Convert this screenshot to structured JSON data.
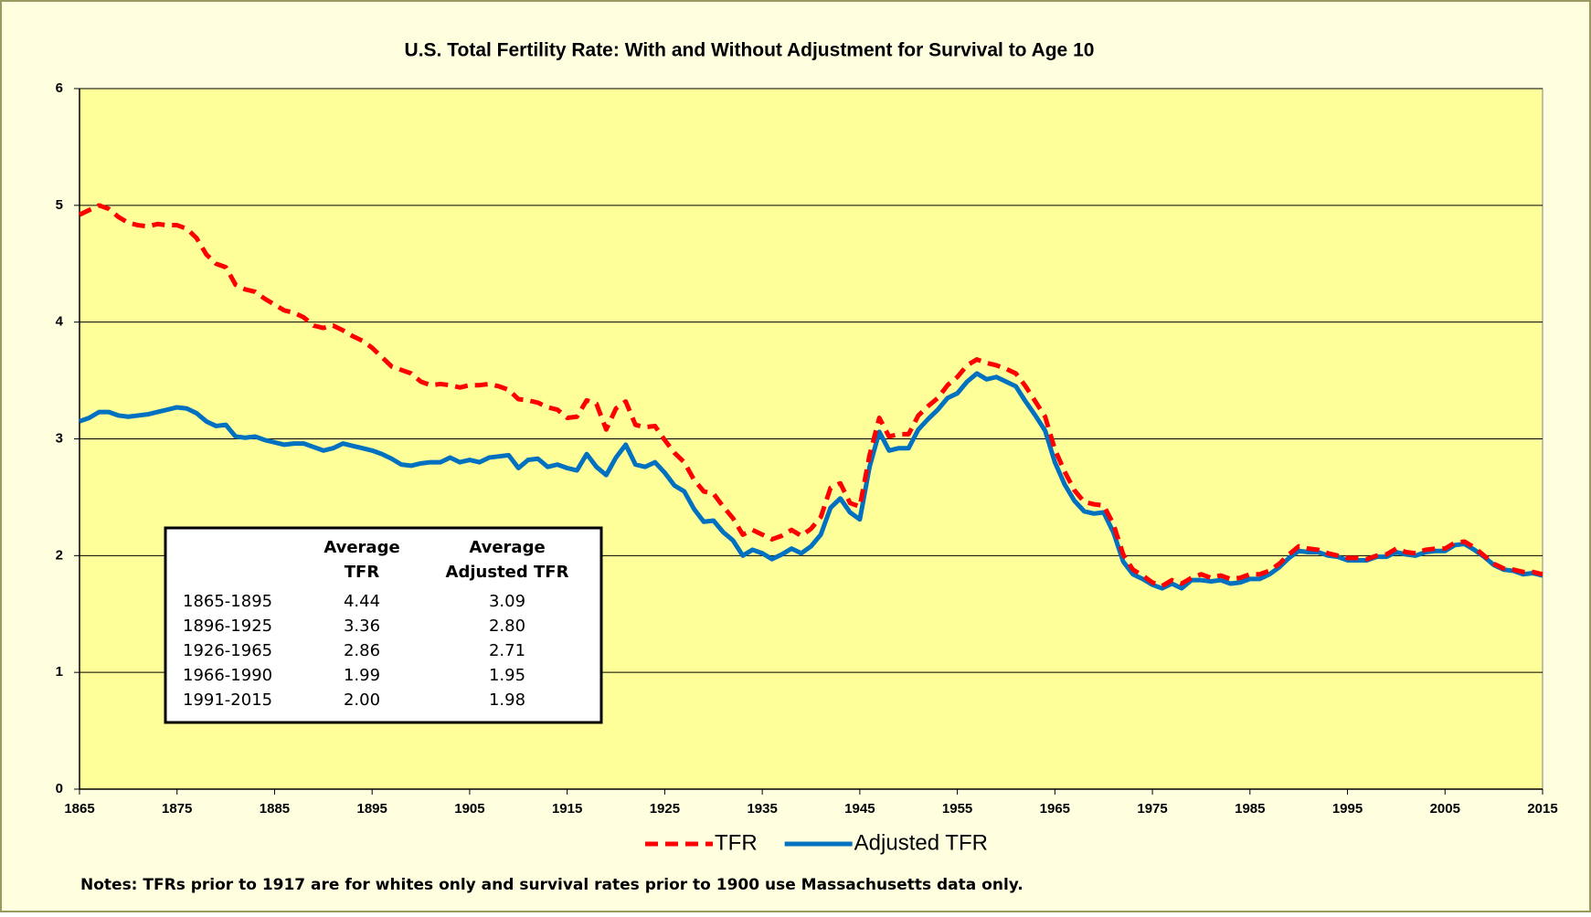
{
  "chart_data": {
    "type": "line",
    "title": "U.S. Total Fertility Rate: With and Without Adjustment for Survival to Age 10",
    "note": "Notes: TFRs prior to 1917 are for whites only and survival rates prior to 1900 use Massachusetts data only.",
    "x": [
      1865,
      1866,
      1867,
      1868,
      1869,
      1870,
      1871,
      1872,
      1873,
      1874,
      1875,
      1876,
      1877,
      1878,
      1879,
      1880,
      1881,
      1882,
      1883,
      1884,
      1885,
      1886,
      1887,
      1888,
      1889,
      1890,
      1891,
      1892,
      1893,
      1894,
      1895,
      1896,
      1897,
      1898,
      1899,
      1900,
      1901,
      1902,
      1903,
      1904,
      1905,
      1906,
      1907,
      1908,
      1909,
      1910,
      1911,
      1912,
      1913,
      1914,
      1915,
      1916,
      1917,
      1918,
      1919,
      1920,
      1921,
      1922,
      1923,
      1924,
      1925,
      1926,
      1927,
      1928,
      1929,
      1930,
      1931,
      1932,
      1933,
      1934,
      1935,
      1936,
      1937,
      1938,
      1939,
      1940,
      1941,
      1942,
      1943,
      1944,
      1945,
      1946,
      1947,
      1948,
      1949,
      1950,
      1951,
      1952,
      1953,
      1954,
      1955,
      1956,
      1957,
      1958,
      1959,
      1960,
      1961,
      1962,
      1963,
      1964,
      1965,
      1966,
      1967,
      1968,
      1969,
      1970,
      1971,
      1972,
      1973,
      1974,
      1975,
      1976,
      1977,
      1978,
      1979,
      1980,
      1981,
      1982,
      1983,
      1984,
      1985,
      1986,
      1987,
      1988,
      1989,
      1990,
      1991,
      1992,
      1993,
      1994,
      1995,
      1996,
      1997,
      1998,
      1999,
      2000,
      2001,
      2002,
      2003,
      2004,
      2005,
      2006,
      2007,
      2008,
      2009,
      2010,
      2011,
      2012,
      2013,
      2014,
      2015
    ],
    "series": [
      {
        "name": "TFR",
        "color": "#ff0000",
        "dashed": true,
        "values": [
          4.92,
          4.96,
          5.0,
          4.97,
          4.9,
          4.85,
          4.83,
          4.82,
          4.84,
          4.83,
          4.83,
          4.8,
          4.72,
          4.58,
          4.5,
          4.47,
          4.32,
          4.28,
          4.26,
          4.2,
          4.15,
          4.1,
          4.08,
          4.04,
          3.97,
          3.95,
          3.97,
          3.93,
          3.88,
          3.84,
          3.78,
          3.7,
          3.62,
          3.59,
          3.56,
          3.49,
          3.46,
          3.47,
          3.46,
          3.44,
          3.46,
          3.46,
          3.47,
          3.45,
          3.42,
          3.34,
          3.33,
          3.31,
          3.27,
          3.25,
          3.18,
          3.19,
          3.33,
          3.3,
          3.08,
          3.26,
          3.32,
          3.12,
          3.1,
          3.11,
          2.99,
          2.88,
          2.8,
          2.65,
          2.55,
          2.53,
          2.42,
          2.32,
          2.18,
          2.22,
          2.18,
          2.14,
          2.17,
          2.22,
          2.17,
          2.23,
          2.33,
          2.58,
          2.62,
          2.45,
          2.42,
          2.86,
          3.18,
          3.02,
          3.04,
          3.04,
          3.2,
          3.28,
          3.35,
          3.46,
          3.53,
          3.63,
          3.68,
          3.65,
          3.63,
          3.6,
          3.56,
          3.45,
          3.32,
          3.19,
          2.91,
          2.72,
          2.56,
          2.46,
          2.44,
          2.43,
          2.27,
          2.01,
          1.88,
          1.83,
          1.77,
          1.74,
          1.79,
          1.76,
          1.81,
          1.84,
          1.81,
          1.83,
          1.8,
          1.81,
          1.84,
          1.84,
          1.87,
          1.93,
          2.01,
          2.08,
          2.06,
          2.05,
          2.02,
          2.0,
          1.98,
          1.98,
          1.97,
          2.0,
          2.01,
          2.06,
          2.03,
          2.02,
          2.05,
          2.06,
          2.06,
          2.11,
          2.12,
          2.07,
          2.0,
          1.93,
          1.89,
          1.88,
          1.86,
          1.86,
          1.84
        ]
      },
      {
        "name": "Adjusted TFR",
        "color": "#0070c0",
        "dashed": false,
        "values": [
          3.15,
          3.18,
          3.23,
          3.23,
          3.2,
          3.19,
          3.2,
          3.21,
          3.23,
          3.25,
          3.27,
          3.26,
          3.22,
          3.15,
          3.11,
          3.12,
          3.02,
          3.01,
          3.02,
          2.99,
          2.97,
          2.95,
          2.96,
          2.96,
          2.93,
          2.9,
          2.92,
          2.96,
          2.94,
          2.92,
          2.9,
          2.87,
          2.83,
          2.78,
          2.77,
          2.79,
          2.8,
          2.8,
          2.84,
          2.8,
          2.82,
          2.8,
          2.84,
          2.85,
          2.86,
          2.75,
          2.82,
          2.83,
          2.76,
          2.78,
          2.75,
          2.73,
          2.87,
          2.76,
          2.69,
          2.84,
          2.95,
          2.78,
          2.76,
          2.8,
          2.71,
          2.6,
          2.55,
          2.4,
          2.29,
          2.3,
          2.2,
          2.13,
          2.0,
          2.05,
          2.02,
          1.97,
          2.01,
          2.06,
          2.02,
          2.08,
          2.18,
          2.41,
          2.49,
          2.37,
          2.31,
          2.76,
          3.06,
          2.9,
          2.92,
          2.92,
          3.08,
          3.17,
          3.25,
          3.35,
          3.39,
          3.49,
          3.56,
          3.51,
          3.53,
          3.49,
          3.45,
          3.32,
          3.2,
          3.07,
          2.8,
          2.61,
          2.47,
          2.38,
          2.36,
          2.37,
          2.2,
          1.95,
          1.84,
          1.8,
          1.75,
          1.72,
          1.76,
          1.72,
          1.79,
          1.79,
          1.78,
          1.79,
          1.76,
          1.77,
          1.8,
          1.8,
          1.84,
          1.9,
          1.98,
          2.04,
          2.03,
          2.03,
          2.0,
          1.99,
          1.96,
          1.96,
          1.96,
          1.99,
          1.99,
          2.03,
          2.01,
          2.0,
          2.03,
          2.04,
          2.04,
          2.09,
          2.1,
          2.05,
          1.99,
          1.92,
          1.88,
          1.87,
          1.84,
          1.85,
          1.83
        ]
      }
    ],
    "xlim": [
      1865,
      2015
    ],
    "xticks": [
      1865,
      1875,
      1885,
      1895,
      1905,
      1915,
      1925,
      1935,
      1945,
      1955,
      1965,
      1975,
      1985,
      1995,
      2005,
      2015
    ],
    "ylim": [
      0,
      6
    ],
    "yticks": [
      0,
      1,
      2,
      3,
      4,
      5,
      6
    ],
    "grid": true,
    "plot_background": "#ffff99",
    "table": {
      "header": [
        [
          "Average",
          "TFR"
        ],
        [
          "Average",
          "Adjusted TFR"
        ]
      ],
      "rows": [
        [
          "1865-1895",
          "4.44",
          "3.09"
        ],
        [
          "1896-1925",
          "3.36",
          "2.80"
        ],
        [
          "1926-1965",
          "2.86",
          "2.71"
        ],
        [
          "1966-1990",
          "1.99",
          "1.95"
        ],
        [
          "1991-2015",
          "2.00",
          "1.98"
        ]
      ]
    }
  }
}
